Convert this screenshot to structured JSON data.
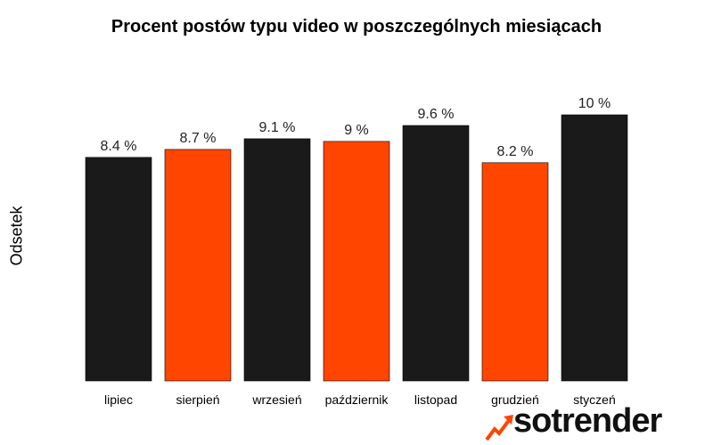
{
  "chart_data": {
    "type": "bar",
    "title": "Procent postów typu video w poszczególnych miesiącach",
    "xlabel": "",
    "ylabel": "Odsetek",
    "categories": [
      "lipiec",
      "sierpień",
      "wrzesień",
      "październik",
      "listopad",
      "grudzień",
      "styczeń"
    ],
    "values": [
      8.4,
      8.7,
      9.1,
      9.0,
      9.6,
      8.2,
      10.0
    ],
    "data_labels": [
      "8.4 %",
      "8.7 %",
      "9.1 %",
      "9 %",
      "9.6 %",
      "8.2 %",
      "10 %"
    ],
    "bar_colors": [
      "#1a1a1a",
      "#ff4500",
      "#1a1a1a",
      "#ff4500",
      "#1a1a1a",
      "#ff4500",
      "#1a1a1a"
    ],
    "ylim": [
      0,
      10
    ],
    "grid": false,
    "legend": "none"
  },
  "brand": {
    "name": "sotrender",
    "accent_color": "#ff4500",
    "icon": "trend-arrow-icon"
  }
}
